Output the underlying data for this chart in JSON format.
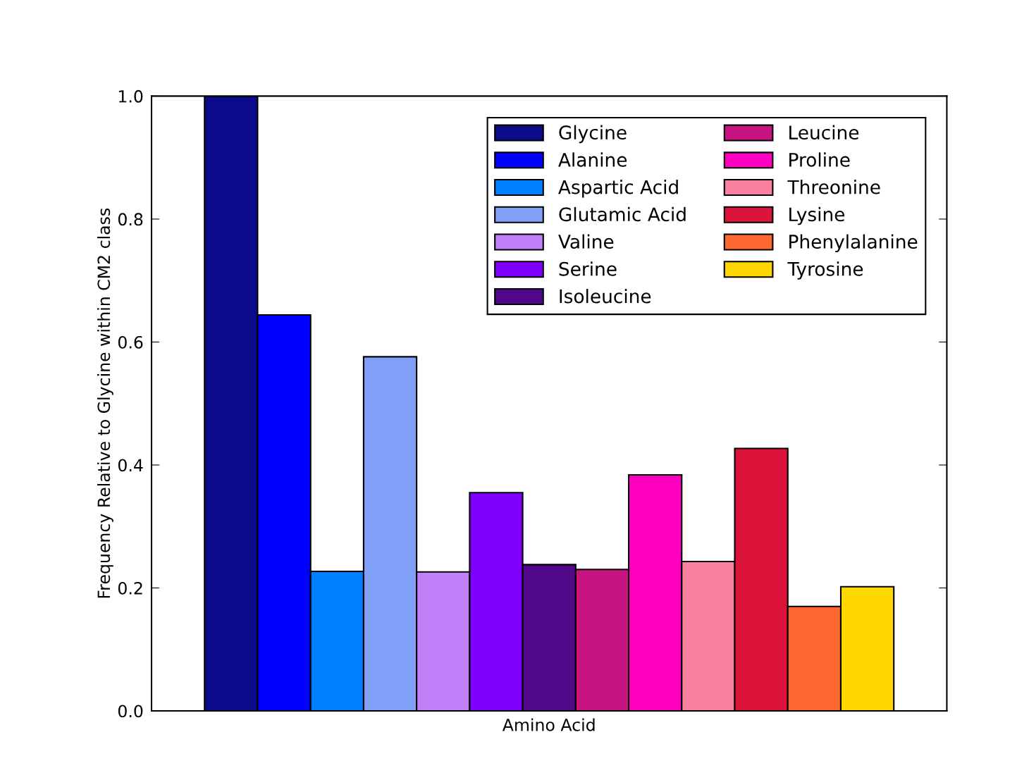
{
  "chart_data": {
    "type": "bar",
    "xlabel": "Amino Acid",
    "ylabel": "Frequency Relative to Glycine within CM2 class",
    "categories": [
      null
    ],
    "ylim": [
      0,
      1.0
    ],
    "yticks": [
      {
        "value": 0,
        "label": "0.0"
      },
      0.2,
      0.4,
      0.6,
      0.8,
      {
        "value": 1.0,
        "label": "1.0"
      }
    ],
    "grid": false,
    "legend": "top right",
    "series": [
      {
        "name": "Glycine",
        "color": "#0a0a8a",
        "values": [
          1.0
        ]
      },
      {
        "name": "Alanine",
        "color": "#0000ff",
        "values": [
          0.644
        ]
      },
      {
        "name": "Aspartic Acid",
        "color": "#0080ff",
        "values": [
          0.227
        ]
      },
      {
        "name": "Glutamic Acid",
        "color": "#80a0f8",
        "values": [
          0.576
        ]
      },
      {
        "name": "Valine",
        "color": "#c080f8",
        "values": [
          0.226
        ]
      },
      {
        "name": "Serine",
        "color": "#8000ff",
        "values": [
          0.355
        ]
      },
      {
        "name": "Isoleucine",
        "color": "#500888",
        "values": [
          0.238
        ]
      },
      {
        "name": "Leucine",
        "color": "#c81480",
        "values": [
          0.23
        ]
      },
      {
        "name": "Proline",
        "color": "#ff00c0",
        "values": [
          0.384
        ]
      },
      {
        "name": "Threonine",
        "color": "#f880a0",
        "values": [
          0.243
        ]
      },
      {
        "name": "Lysine",
        "color": "#dc143c",
        "values": [
          0.427
        ]
      },
      {
        "name": "Phenylalanine",
        "color": "#ff6830",
        "values": [
          0.17
        ]
      },
      {
        "name": "Tyrosine",
        "color": "#ffd700",
        "values": [
          0.202
        ]
      }
    ]
  }
}
